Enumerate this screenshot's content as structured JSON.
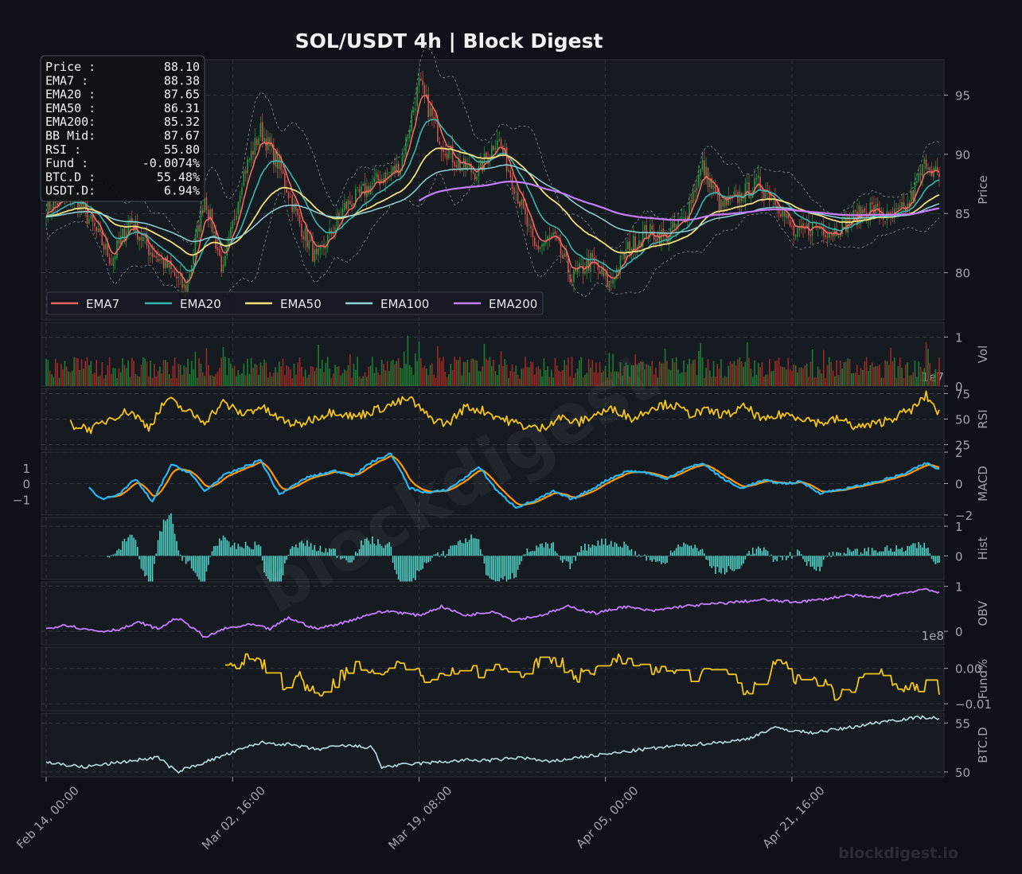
{
  "page": {
    "title": "SOL/USDT  4h  |  Block Digest",
    "watermark": "blockdigest",
    "footer_brand": "blockdigest.io"
  },
  "colors": {
    "background": "#0e1117",
    "panel": "#161a21",
    "grid": "#3a3f48",
    "axis_text": "#a0a4ab",
    "up_candle": "#26a641",
    "down_candle": "#e5534b",
    "ema7": "#f06a60",
    "ema20": "#3bb6b0",
    "ema50": "#f5e07a",
    "ema100": "#8fd3d8",
    "ema200": "#c77dff",
    "rsi": "#f5c518",
    "macd": "#29b6f6",
    "signal": "#ff9800",
    "hist": "#4fd1c5",
    "obv": "#c77dff",
    "funding": "#f5c518",
    "btcd": "#b8e0e3"
  },
  "info_box": [
    {
      "label": "Price :",
      "value": "88.10"
    },
    {
      "label": "EMA7  :",
      "value": "88.38"
    },
    {
      "label": "EMA20 :",
      "value": "87.65"
    },
    {
      "label": "EMA50 :",
      "value": "86.31"
    },
    {
      "label": "EMA200:",
      "value": "85.32"
    },
    {
      "label": "BB Mid:",
      "value": "87.67"
    },
    {
      "label": "RSI   :",
      "value": "55.80"
    },
    {
      "label": "Fund  :",
      "value": "-0.0074%"
    },
    {
      "label": "BTC.D :",
      "value": "55.48%"
    },
    {
      "label": "USDT.D:",
      "value": "6.94%"
    }
  ],
  "chart_data": {
    "type": "line",
    "title": "SOL/USDT  4h  |  Block Digest",
    "x_ticks": [
      "Feb 14, 00:00",
      "Mar 02, 16:00",
      "Mar 19, 08:00",
      "Apr 05, 00:00",
      "Apr 21, 16:00"
    ],
    "candles": 480,
    "legend": {
      "placement": "lower-left",
      "entries": [
        "EMA7",
        "EMA20",
        "EMA50",
        "EMA100",
        "EMA200"
      ]
    },
    "panels": [
      {
        "name": "Price",
        "ylabel": "Price",
        "ylim": [
          76,
          98
        ],
        "ticks": [
          "80",
          "85",
          "90",
          "95"
        ],
        "tick_values": [
          80,
          85,
          90,
          95
        ]
      },
      {
        "name": "Vol",
        "ylabel": "Vol",
        "ylim": [
          0,
          1.3
        ],
        "ticks": [
          "0",
          "1"
        ],
        "tick_values": [
          0,
          1
        ],
        "offset_label": "1e7"
      },
      {
        "name": "RSI",
        "ylabel": "RSI",
        "ylim": [
          20,
          80
        ],
        "ticks": [
          "25",
          "50",
          "75"
        ],
        "tick_values": [
          25,
          50,
          75
        ]
      },
      {
        "name": "MACD",
        "ylabel": "MACD",
        "ylim": [
          -2,
          2
        ],
        "ticks": [
          "−2",
          "0",
          "2"
        ],
        "tick_values": [
          -2,
          0,
          2
        ],
        "left_ticks": [
          "1",
          "0",
          "−1"
        ],
        "left_tick_values": [
          1,
          0,
          -1
        ]
      },
      {
        "name": "Hist",
        "ylabel": "Hist",
        "ylim": [
          -0.8,
          1.3
        ],
        "ticks": [
          "0",
          "1"
        ],
        "tick_values": [
          0,
          1
        ]
      },
      {
        "name": "OBV",
        "ylabel": "OBV",
        "ylim": [
          -0.3,
          1.1
        ],
        "ticks": [
          "0",
          "1"
        ],
        "tick_values": [
          0,
          1
        ],
        "offset_label": "1e8"
      },
      {
        "name": "Fund%",
        "ylabel": "Fund%",
        "ylim": [
          -0.012,
          0.006
        ],
        "ticks": [
          "0.00",
          "−0.01"
        ],
        "tick_values": [
          0.0,
          -0.01
        ]
      },
      {
        "name": "BTC.D",
        "ylabel": "BTC.D",
        "ylim": [
          49.5,
          56
        ],
        "ticks": [
          "50",
          "55"
        ],
        "tick_values": [
          50,
          55
        ]
      }
    ],
    "price_anchors": [
      [
        0,
        85.5
      ],
      [
        15,
        86.5
      ],
      [
        25,
        84
      ],
      [
        35,
        81
      ],
      [
        45,
        84.5
      ],
      [
        55,
        82
      ],
      [
        65,
        80.5
      ],
      [
        75,
        78.5
      ],
      [
        85,
        86.5
      ],
      [
        95,
        80
      ],
      [
        105,
        88
      ],
      [
        115,
        92
      ],
      [
        125,
        89
      ],
      [
        135,
        84.5
      ],
      [
        145,
        81
      ],
      [
        160,
        85.5
      ],
      [
        175,
        87.5
      ],
      [
        190,
        89
      ],
      [
        200,
        96
      ],
      [
        212,
        91
      ],
      [
        222,
        89
      ],
      [
        232,
        88.5
      ],
      [
        242,
        91.5
      ],
      [
        252,
        87
      ],
      [
        262,
        82
      ],
      [
        272,
        83
      ],
      [
        282,
        79.5
      ],
      [
        292,
        81
      ],
      [
        302,
        79
      ],
      [
        312,
        82
      ],
      [
        322,
        83.5
      ],
      [
        332,
        83
      ],
      [
        342,
        84.5
      ],
      [
        352,
        89
      ],
      [
        362,
        85.5
      ],
      [
        372,
        86.5
      ],
      [
        382,
        87.5
      ],
      [
        392,
        86
      ],
      [
        402,
        83
      ],
      [
        412,
        84
      ],
      [
        422,
        83.5
      ],
      [
        432,
        84.5
      ],
      [
        442,
        85.5
      ],
      [
        452,
        84.5
      ],
      [
        462,
        85.5
      ],
      [
        472,
        89.5
      ],
      [
        479,
        88.1
      ]
    ],
    "rsi_anchors": [
      [
        13,
        45
      ],
      [
        25,
        40
      ],
      [
        35,
        52
      ],
      [
        45,
        58
      ],
      [
        55,
        42
      ],
      [
        65,
        70
      ],
      [
        75,
        58
      ],
      [
        85,
        48
      ],
      [
        95,
        66
      ],
      [
        105,
        55
      ],
      [
        115,
        62
      ],
      [
        125,
        50
      ],
      [
        135,
        44
      ],
      [
        145,
        52
      ],
      [
        155,
        58
      ],
      [
        165,
        52
      ],
      [
        175,
        58
      ],
      [
        185,
        64
      ],
      [
        195,
        70
      ],
      [
        205,
        52
      ],
      [
        215,
        45
      ],
      [
        225,
        62
      ],
      [
        235,
        58
      ],
      [
        245,
        50
      ],
      [
        255,
        44
      ],
      [
        265,
        40
      ],
      [
        275,
        52
      ],
      [
        285,
        46
      ],
      [
        295,
        55
      ],
      [
        305,
        60
      ],
      [
        315,
        50
      ],
      [
        325,
        62
      ],
      [
        335,
        65
      ],
      [
        345,
        55
      ],
      [
        355,
        58
      ],
      [
        365,
        54
      ],
      [
        375,
        62
      ],
      [
        385,
        48
      ],
      [
        395,
        55
      ],
      [
        405,
        52
      ],
      [
        415,
        46
      ],
      [
        425,
        50
      ],
      [
        435,
        42
      ],
      [
        445,
        45
      ],
      [
        455,
        52
      ],
      [
        465,
        60
      ],
      [
        472,
        73
      ],
      [
        479,
        56
      ]
    ],
    "macd_anchors": [
      [
        23,
        -0.3
      ],
      [
        30,
        -1
      ],
      [
        40,
        -0.6
      ],
      [
        48,
        0.3
      ],
      [
        57,
        -1.2
      ],
      [
        67,
        1.2
      ],
      [
        77,
        0.7
      ],
      [
        85,
        -0.5
      ],
      [
        95,
        0.5
      ],
      [
        105,
        1
      ],
      [
        115,
        1.5
      ],
      [
        125,
        -0.7
      ],
      [
        140,
        0.4
      ],
      [
        155,
        0.8
      ],
      [
        165,
        0.5
      ],
      [
        175,
        1.4
      ],
      [
        185,
        1.9
      ],
      [
        195,
        -0.3
      ],
      [
        205,
        -0.6
      ],
      [
        215,
        -0.4
      ],
      [
        225,
        0.4
      ],
      [
        232,
        1.1
      ],
      [
        242,
        -0.5
      ],
      [
        252,
        -1.5
      ],
      [
        262,
        -1.1
      ],
      [
        272,
        -0.5
      ],
      [
        282,
        -1
      ],
      [
        292,
        -0.4
      ],
      [
        302,
        0.3
      ],
      [
        312,
        0.8
      ],
      [
        322,
        0.7
      ],
      [
        332,
        0.3
      ],
      [
        342,
        0.9
      ],
      [
        352,
        1.3
      ],
      [
        362,
        0.4
      ],
      [
        372,
        -0.3
      ],
      [
        385,
        0.2
      ],
      [
        395,
        0
      ],
      [
        405,
        0.1
      ],
      [
        415,
        -0.6
      ],
      [
        430,
        -0.3
      ],
      [
        445,
        0.1
      ],
      [
        460,
        0.6
      ],
      [
        472,
        1.3
      ],
      [
        479,
        0.9
      ]
    ],
    "obv_anchors": [
      [
        0,
        0.05
      ],
      [
        10,
        0.15
      ],
      [
        20,
        0.05
      ],
      [
        30,
        0
      ],
      [
        40,
        0.05
      ],
      [
        50,
        0.2
      ],
      [
        60,
        0.05
      ],
      [
        70,
        0.3
      ],
      [
        80,
        0.05
      ],
      [
        85,
        -0.15
      ],
      [
        95,
        0.05
      ],
      [
        110,
        0.15
      ],
      [
        120,
        0.05
      ],
      [
        130,
        0.3
      ],
      [
        145,
        0.05
      ],
      [
        160,
        0.2
      ],
      [
        175,
        0.4
      ],
      [
        185,
        0.45
      ],
      [
        200,
        0.35
      ],
      [
        212,
        0.55
      ],
      [
        225,
        0.35
      ],
      [
        240,
        0.45
      ],
      [
        250,
        0.25
      ],
      [
        265,
        0.35
      ],
      [
        280,
        0.55
      ],
      [
        295,
        0.4
      ],
      [
        310,
        0.55
      ],
      [
        325,
        0.45
      ],
      [
        340,
        0.55
      ],
      [
        355,
        0.6
      ],
      [
        370,
        0.65
      ],
      [
        385,
        0.7
      ],
      [
        400,
        0.65
      ],
      [
        415,
        0.7
      ],
      [
        430,
        0.8
      ],
      [
        445,
        0.75
      ],
      [
        460,
        0.85
      ],
      [
        472,
        0.95
      ],
      [
        479,
        0.85
      ]
    ],
    "funding_anchors": [
      [
        96,
        -0.001
      ],
      [
        105,
        0.002
      ],
      [
        115,
        0.0025
      ],
      [
        125,
        -0.006
      ],
      [
        135,
        -0.002
      ],
      [
        145,
        -0.008
      ],
      [
        155,
        -0.004
      ],
      [
        165,
        0.001
      ],
      [
        175,
        0
      ],
      [
        185,
        -0.001
      ],
      [
        195,
        0.002
      ],
      [
        205,
        -0.004
      ],
      [
        215,
        -0.002
      ],
      [
        225,
        0.0025
      ],
      [
        235,
        -0.002
      ],
      [
        245,
        0.001
      ],
      [
        255,
        -0.004
      ],
      [
        265,
        0.002
      ],
      [
        275,
        0.002
      ],
      [
        285,
        -0.002
      ],
      [
        295,
        0
      ],
      [
        305,
        0.0035
      ],
      [
        315,
        0
      ],
      [
        325,
        -0.002
      ],
      [
        335,
        0.001
      ],
      [
        345,
        -0.004
      ],
      [
        355,
        0
      ],
      [
        365,
        -0.003
      ],
      [
        375,
        -0.008
      ],
      [
        385,
        -0.002
      ],
      [
        395,
        0.002
      ],
      [
        405,
        -0.005
      ],
      [
        415,
        -0.003
      ],
      [
        425,
        -0.008
      ],
      [
        435,
        -0.005
      ],
      [
        445,
        0
      ],
      [
        455,
        -0.006
      ],
      [
        465,
        -0.005
      ],
      [
        472,
        -0.004
      ],
      [
        479,
        -0.0074
      ]
    ],
    "btcd_anchors": [
      [
        0,
        51
      ],
      [
        20,
        50.5
      ],
      [
        40,
        51
      ],
      [
        60,
        51.5
      ],
      [
        70,
        50
      ],
      [
        85,
        51
      ],
      [
        100,
        52
      ],
      [
        115,
        53
      ],
      [
        130,
        52.8
      ],
      [
        145,
        52.3
      ],
      [
        160,
        52.7
      ],
      [
        175,
        52.5
      ],
      [
        180,
        50.5
      ],
      [
        195,
        50.8
      ],
      [
        210,
        51
      ],
      [
        225,
        51.2
      ],
      [
        240,
        51.2
      ],
      [
        255,
        51.5
      ],
      [
        270,
        51
      ],
      [
        285,
        51.5
      ],
      [
        300,
        51.8
      ],
      [
        320,
        52.3
      ],
      [
        340,
        52.7
      ],
      [
        360,
        53
      ],
      [
        375,
        53.3
      ],
      [
        390,
        54.5
      ],
      [
        410,
        54
      ],
      [
        430,
        54.5
      ],
      [
        450,
        55.2
      ],
      [
        470,
        55.6
      ],
      [
        479,
        55.48
      ]
    ]
  }
}
